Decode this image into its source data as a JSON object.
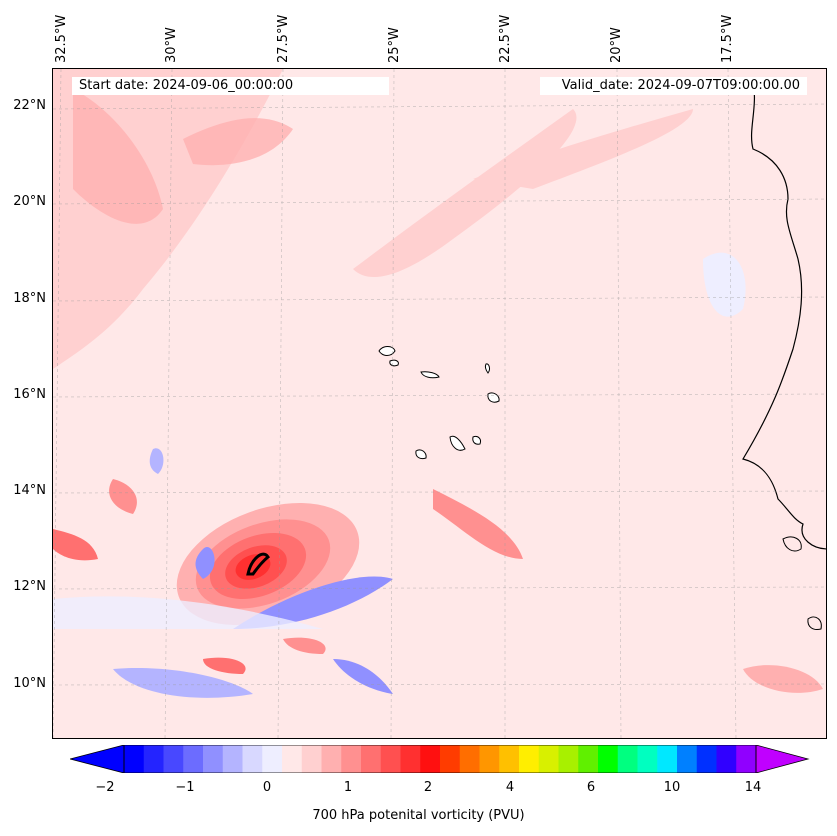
{
  "header": {
    "start_date": "Start date: 2024-09-06_00:00:00",
    "valid_date": "Valid_date: 2024-09-07T09:00:00.00"
  },
  "map": {
    "lon_labels": [
      "32.5°W",
      "30°W",
      "27.5°W",
      "25°W",
      "22.5°W",
      "20°W",
      "17.5°W"
    ],
    "lat_labels": [
      "22°N",
      "20°N",
      "18°N",
      "16°N",
      "14°N",
      "12°N",
      "10°N"
    ],
    "background_color": "#ffe8e8"
  },
  "colorbar": {
    "label": "700 hPa potenital vorticity (PVU)",
    "tick_labels": [
      "−2",
      "−1",
      "0",
      "1",
      "2",
      "4",
      "6",
      "10",
      "14"
    ],
    "colors": [
      "#0000ff",
      "#2424ff",
      "#4848ff",
      "#6c6cff",
      "#9090ff",
      "#b4b4ff",
      "#d8d8ff",
      "#eeeeff",
      "#ffe8e8",
      "#ffd0d0",
      "#ffb0b0",
      "#ff9090",
      "#ff7070",
      "#ff5050",
      "#ff3030",
      "#ff1010",
      "#ff3c00",
      "#ff6e00",
      "#ff9600",
      "#ffc000",
      "#ffee00",
      "#d8f000",
      "#a8f000",
      "#60f000",
      "#00ff00",
      "#00ff80",
      "#00ffc0",
      "#00e8ff",
      "#0080ff",
      "#0030ff",
      "#3000ff",
      "#9000ff"
    ],
    "under_color": "#0000ff",
    "over_color": "#c000ff"
  }
}
